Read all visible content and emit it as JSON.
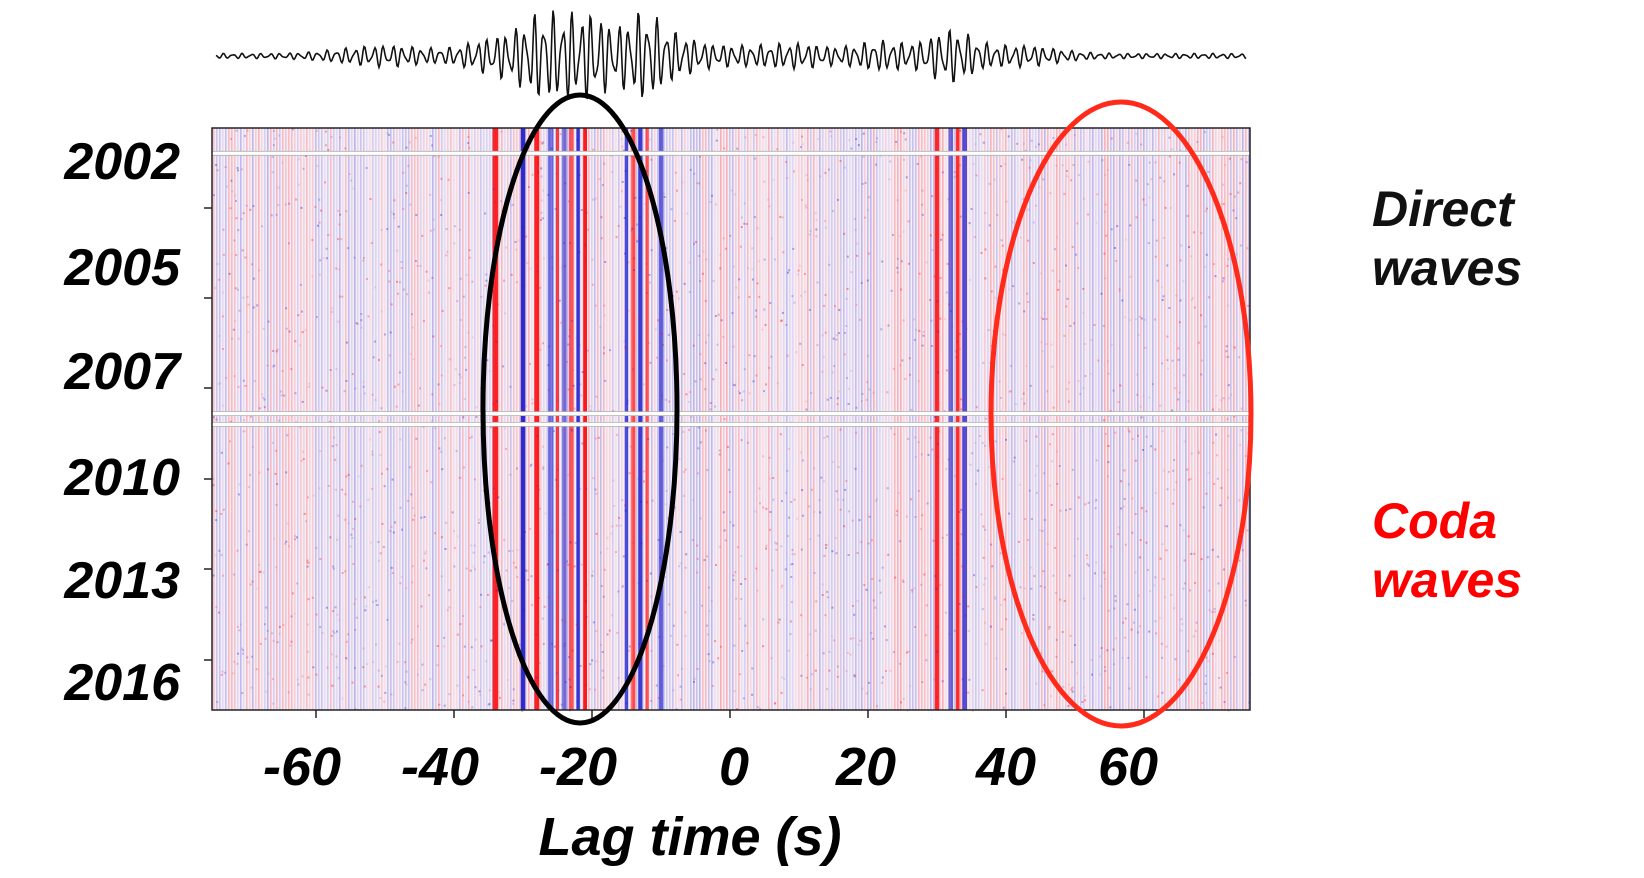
{
  "chart_data": {
    "type": "heatmap",
    "description_kind": "seismic cross-correlation record section",
    "x": {
      "label": "Lag time (s)",
      "range": [
        -75,
        75
      ],
      "ticks": [
        -60,
        -40,
        -20,
        0,
        20,
        40,
        60
      ],
      "tick_labels": [
        "-60",
        "-40",
        "-20",
        "0",
        "20",
        "40",
        "60"
      ]
    },
    "y": {
      "label": "",
      "ticks": [
        2002,
        2005,
        2007,
        2010,
        2013,
        2016
      ],
      "tick_labels": [
        "2002",
        "2005",
        "2007",
        "2010",
        "2013",
        "2016"
      ],
      "inverted": true
    },
    "colormap": {
      "positive": "#ff0000",
      "negative": "#1a1acc",
      "zero": "#ffffff"
    },
    "strong_bands_lag_s": [
      -34,
      -30,
      -28,
      -26,
      -25,
      -24,
      -23,
      -22,
      -21,
      -15,
      -14,
      -13,
      -12,
      -10,
      30,
      32,
      33,
      34
    ],
    "data_gaps_year": [
      2002.2,
      2009.4,
      2009.7
    ],
    "annotations": [
      {
        "shape": "ellipse",
        "color": "#000000",
        "center_lag_s": -22,
        "label_lines": [
          "Direct",
          "waves"
        ]
      },
      {
        "shape": "ellipse",
        "color": "#ff2a1a",
        "center_lag_s": 57,
        "label_lines": [
          "Coda",
          "waves"
        ]
      }
    ],
    "stacked_trace": "averaged waveform plotted above the section"
  },
  "labels": {
    "direct": [
      "Direct",
      "waves"
    ],
    "coda": [
      "Coda",
      "waves"
    ],
    "direct_color": "#111111",
    "coda_color": "#ff0000"
  }
}
